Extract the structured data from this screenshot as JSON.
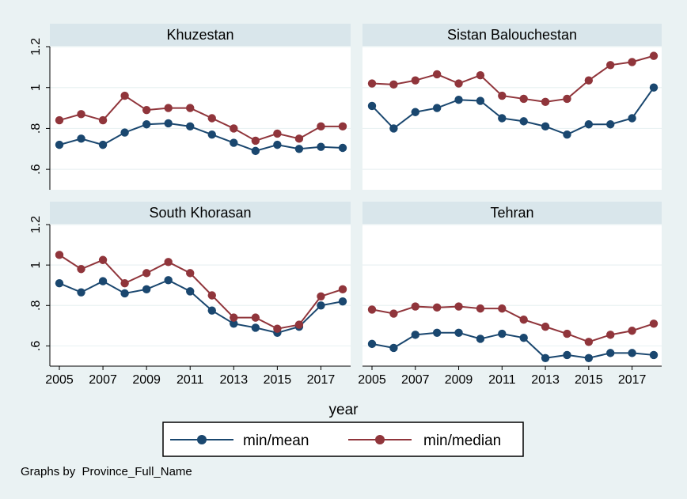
{
  "colors": {
    "background": "#eaf2f3",
    "plot_background": "#ffffff",
    "panel_header": "#d9e6eb",
    "gridline": "#eaf2f3",
    "series_mean": "#1a476f",
    "series_median": "#90353b"
  },
  "chart_data": {
    "type": "line",
    "layout": "2x2 facets",
    "x": [
      2005,
      2006,
      2007,
      2008,
      2009,
      2010,
      2011,
      2012,
      2013,
      2014,
      2015,
      2016,
      2017,
      2018
    ],
    "xticks": [
      "2005",
      "2007",
      "2009",
      "2011",
      "2013",
      "2015",
      "2017"
    ],
    "xlabel": "year",
    "ylim": [
      0.5,
      1.2
    ],
    "yticks": [
      ".6",
      ".8",
      "1",
      "1.2"
    ],
    "grid": true,
    "legend": {
      "position": "bottom",
      "entries": [
        "min/mean",
        "min/median"
      ]
    },
    "note": "Graphs by  Province_Full_Name",
    "panels": [
      {
        "title": "Khuzestan",
        "series": [
          {
            "name": "min/mean",
            "values": [
              0.72,
              0.75,
              0.72,
              0.78,
              0.82,
              0.825,
              0.81,
              0.77,
              0.73,
              0.69,
              0.72,
              0.7,
              0.71,
              0.705
            ]
          },
          {
            "name": "min/median",
            "values": [
              0.84,
              0.87,
              0.84,
              0.96,
              0.89,
              0.9,
              0.9,
              0.85,
              0.8,
              0.74,
              0.775,
              0.75,
              0.81,
              0.81
            ]
          }
        ]
      },
      {
        "title": "Sistan Balouchestan",
        "series": [
          {
            "name": "min/mean",
            "values": [
              0.91,
              0.8,
              0.88,
              0.9,
              0.94,
              0.935,
              0.85,
              0.835,
              0.81,
              0.77,
              0.82,
              0.82,
              0.85,
              1.0
            ]
          },
          {
            "name": "min/median",
            "values": [
              1.02,
              1.015,
              1.035,
              1.065,
              1.02,
              1.06,
              0.96,
              0.945,
              0.93,
              0.945,
              1.035,
              1.11,
              1.125,
              1.155
            ]
          }
        ]
      },
      {
        "title": "South Khorasan",
        "series": [
          {
            "name": "min/mean",
            "values": [
              0.91,
              0.865,
              0.92,
              0.86,
              0.88,
              0.925,
              0.87,
              0.775,
              0.71,
              0.69,
              0.665,
              0.695,
              0.8,
              0.82
            ]
          },
          {
            "name": "min/median",
            "values": [
              1.05,
              0.98,
              1.025,
              0.91,
              0.96,
              1.015,
              0.96,
              0.85,
              0.74,
              0.74,
              0.685,
              0.705,
              0.845,
              0.88
            ]
          }
        ]
      },
      {
        "title": "Tehran",
        "series": [
          {
            "name": "min/mean",
            "values": [
              0.61,
              0.59,
              0.655,
              0.665,
              0.665,
              0.635,
              0.66,
              0.64,
              0.54,
              0.555,
              0.54,
              0.565,
              0.565,
              0.555
            ]
          },
          {
            "name": "min/median",
            "values": [
              0.78,
              0.76,
              0.795,
              0.79,
              0.795,
              0.785,
              0.785,
              0.73,
              0.695,
              0.66,
              0.62,
              0.655,
              0.675,
              0.71
            ]
          }
        ]
      }
    ]
  }
}
